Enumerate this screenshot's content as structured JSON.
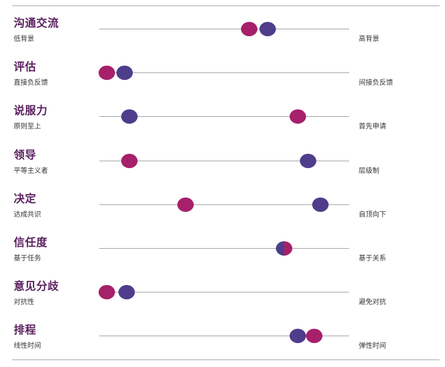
{
  "colors": {
    "title": "#5a1f5e",
    "series_a": "#a6206a",
    "series_b": "#4e3d8b",
    "axis": "#a8a8a8"
  },
  "scales": [
    {
      "title": "沟通交流",
      "left": "低背景",
      "right": "高背景",
      "a": 0.6,
      "b": 0.675
    },
    {
      "title": "评估",
      "left": "直接负反馈",
      "right": "间接负反馈",
      "a": 0.03,
      "b": 0.1
    },
    {
      "title": "说服力",
      "left": "原则至上",
      "right": "首先申请",
      "a": 0.795,
      "b": 0.12
    },
    {
      "title": "领导",
      "left": "平等主义者",
      "right": "层级制",
      "a": 0.12,
      "b": 0.835
    },
    {
      "title": "决定",
      "left": "达成共识",
      "right": "自顶向下",
      "a": 0.345,
      "b": 0.885
    },
    {
      "title": "信任度",
      "left": "基于任务",
      "right": "基于关系",
      "a": 0.74,
      "b": 0.74
    },
    {
      "title": "意见分歧",
      "left": "对抗性",
      "right": "避免对抗",
      "a": 0.03,
      "b": 0.11
    },
    {
      "title": "排程",
      "left": "线性时间",
      "right": "弹性时间",
      "a": 0.86,
      "b": 0.795
    }
  ]
}
